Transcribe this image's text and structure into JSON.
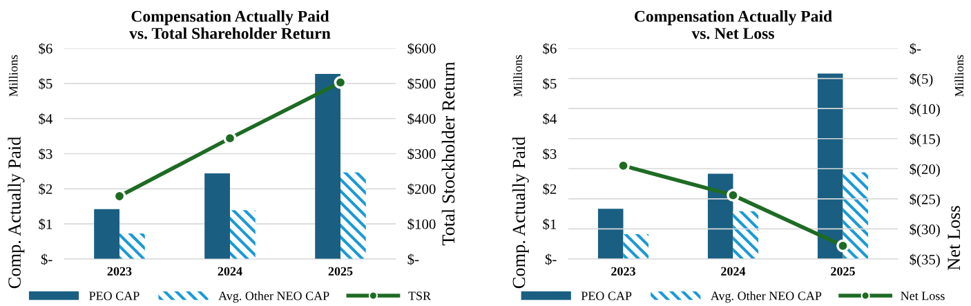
{
  "chart_data": [
    {
      "type": "bar",
      "title": "Compensation Actually Paid\nvs. Total Shareholder Return",
      "ylabel": "Comp. Actually Paid",
      "y2label": "Total Stockholder Return",
      "annotations": [
        "Millions"
      ],
      "categories": [
        "2023",
        "2024",
        "2025"
      ],
      "series": [
        {
          "name": "PEO CAP",
          "color": "#1a5f82",
          "values": [
            1.42,
            2.44,
            5.27
          ]
        },
        {
          "name": "Avg. Other NEO CAP",
          "color": "#1a9ad6",
          "values": [
            0.73,
            1.39,
            2.47
          ]
        },
        {
          "name": "TSR",
          "type": "line",
          "axis": "y2",
          "color": "#1e6b24",
          "values": [
            179,
            344,
            503
          ]
        }
      ],
      "ylim": [
        0,
        6
      ],
      "yticks": [
        {
          "value": 0,
          "label": "$-"
        },
        {
          "value": 1,
          "label": "$1"
        },
        {
          "value": 2,
          "label": "$2"
        },
        {
          "value": 3,
          "label": "$3"
        },
        {
          "value": 4,
          "label": "$4"
        },
        {
          "value": 5,
          "label": "$5"
        },
        {
          "value": 6,
          "label": "$6"
        }
      ],
      "y2lim": [
        0,
        600
      ],
      "y2ticks": [
        {
          "value": 0,
          "label": "$-"
        },
        {
          "value": 100,
          "label": "$100"
        },
        {
          "value": 200,
          "label": "$200"
        },
        {
          "value": 300,
          "label": "$300"
        },
        {
          "value": 400,
          "label": "$400"
        },
        {
          "value": 500,
          "label": "$500"
        },
        {
          "value": 600,
          "label": "$600"
        }
      ],
      "grid": "y",
      "legend": "bottom",
      "marker": "circle",
      "line_style": "solid"
    },
    {
      "type": "bar",
      "title": "Compensation Actually Paid\nvs. Net Loss",
      "ylabel": "Comp. Actually Paid",
      "y2label": "Net Loss",
      "annotations": [
        "Millions",
        "Millions"
      ],
      "categories": [
        "2023",
        "2024",
        "2025"
      ],
      "series": [
        {
          "name": "PEO CAP",
          "color": "#1a5f82",
          "values": [
            1.43,
            2.43,
            5.28
          ]
        },
        {
          "name": "Avg. Other NEO CAP",
          "color": "#1a9ad6",
          "values": [
            0.71,
            1.36,
            2.47
          ]
        },
        {
          "name": "Net Loss",
          "type": "line",
          "axis": "y2",
          "color": "#1e6b24",
          "values": [
            -19.5,
            -24.4,
            -32.8
          ]
        }
      ],
      "ylim": [
        0,
        6
      ],
      "yticks": [
        {
          "value": 0,
          "label": "$-"
        },
        {
          "value": 1,
          "label": "$1"
        },
        {
          "value": 2,
          "label": "$2"
        },
        {
          "value": 3,
          "label": "$3"
        },
        {
          "value": 4,
          "label": "$4"
        },
        {
          "value": 5,
          "label": "$5"
        },
        {
          "value": 6,
          "label": "$6"
        }
      ],
      "y2lim": [
        -35,
        0
      ],
      "y2ticks": [
        {
          "value": -35,
          "label": "$(35)"
        },
        {
          "value": -30,
          "label": "$(30)"
        },
        {
          "value": -25,
          "label": "$(25)"
        },
        {
          "value": -20,
          "label": "$(20)"
        },
        {
          "value": -15,
          "label": "$(15)"
        },
        {
          "value": -10,
          "label": "$(10)"
        },
        {
          "value": -5,
          "label": "$(5)"
        },
        {
          "value": 0,
          "label": "$-"
        }
      ],
      "grid": "y2",
      "legend": "bottom",
      "marker": "circle",
      "line_style": "solid"
    }
  ]
}
